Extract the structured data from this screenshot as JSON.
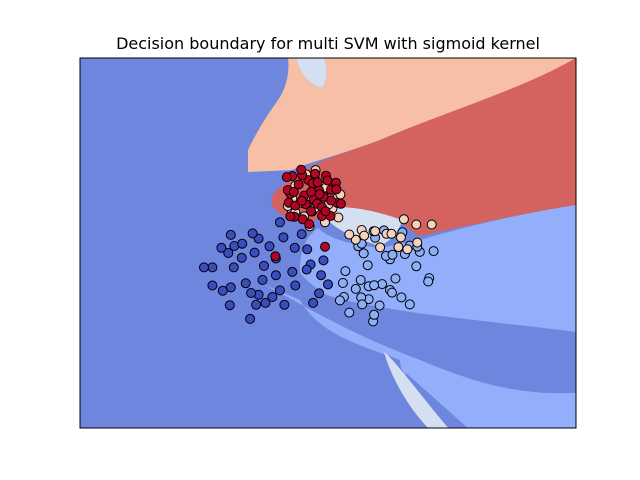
{
  "chart_data": {
    "type": "scatter",
    "title": "Decision boundary for multi SVM with sigmoid kernel",
    "xlabel": "",
    "ylabel": "",
    "xlim": [
      0,
      100
    ],
    "ylim": [
      0,
      100
    ],
    "grid": false,
    "legend": "none",
    "colors": {
      "region_0": "#6e86dd",
      "region_1": "#93aefa",
      "region_2": "#d5dff2",
      "region_3": "#f6bfa6",
      "region_4": "#d4635f",
      "class_0": "#3b4cc0",
      "class_1": "#8caff5",
      "class_2": "#f2d3bf",
      "class_3": "#b40426",
      "edge": "#000000",
      "axes_edge": "#000000"
    },
    "series": [
      {
        "class": 0,
        "points": [
          [
            36.0,
            51.2
          ],
          [
            38.2,
            49.1
          ],
          [
            35.2,
            47.4
          ],
          [
            39.5,
            45.8
          ],
          [
            41.0,
            51.5
          ],
          [
            43.3,
            48.7
          ],
          [
            37.1,
            43.8
          ],
          [
            44.7,
            52.4
          ],
          [
            40.3,
            55.6
          ],
          [
            34.8,
            52.6
          ],
          [
            31.1,
            49.2
          ],
          [
            32.6,
            46.0
          ],
          [
            36.8,
            40.0
          ],
          [
            40.3,
            37.2
          ],
          [
            42.8,
            42.2
          ],
          [
            45.8,
            48.3
          ],
          [
            46.5,
            44.2
          ],
          [
            48.6,
            41.3
          ],
          [
            50.0,
            38.8
          ],
          [
            49.1,
            45.3
          ],
          [
            43.4,
            38.5
          ],
          [
            38.8,
            35.4
          ],
          [
            33.4,
            39.1
          ],
          [
            31.0,
            43.4
          ],
          [
            30.4,
            52.2
          ],
          [
            29.9,
            47.3
          ],
          [
            28.5,
            48.7
          ],
          [
            26.7,
            43.4
          ],
          [
            25.0,
            43.4
          ],
          [
            30.4,
            38.0
          ],
          [
            36.0,
            36.0
          ],
          [
            35.5,
            33.3
          ],
          [
            34.5,
            36.5
          ],
          [
            37.4,
            33.8
          ],
          [
            41.2,
            33.3
          ],
          [
            45.7,
            42.8
          ],
          [
            48.2,
            36.4
          ],
          [
            47.0,
            33.8
          ],
          [
            30.2,
            33.2
          ],
          [
            34.3,
            29.5
          ],
          [
            28.8,
            37.1
          ],
          [
            32.7,
            49.8
          ],
          [
            26.7,
            38.5
          ],
          [
            39.5,
            41.3
          ]
        ]
      },
      {
        "class": 1,
        "points": [
          [
            62.5,
            45.6
          ],
          [
            59.5,
            51.4
          ],
          [
            56.1,
            49.1
          ],
          [
            58.0,
            44.0
          ],
          [
            63.6,
            40.4
          ],
          [
            60.9,
            38.9
          ],
          [
            56.6,
            40.0
          ],
          [
            53.5,
            42.4
          ],
          [
            55.6,
            37.6
          ],
          [
            58.2,
            34.8
          ],
          [
            62.5,
            37.3
          ],
          [
            66.5,
            33.4
          ],
          [
            61.7,
            46.5
          ],
          [
            68.5,
            47.6
          ],
          [
            70.4,
            40.5
          ],
          [
            67.8,
            43.7
          ],
          [
            65.0,
            52.9
          ],
          [
            66.5,
            49.3
          ],
          [
            64.8,
            35.3
          ],
          [
            63.0,
            46.8
          ],
          [
            61.3,
            53.4
          ],
          [
            57.2,
            47.2
          ],
          [
            53.2,
            35.4
          ],
          [
            52.4,
            34.5
          ],
          [
            54.3,
            31.2
          ],
          [
            59.1,
            28.8
          ],
          [
            62.9,
            36.6
          ],
          [
            56.7,
            35.3
          ],
          [
            68.0,
            49.0
          ],
          [
            65.5,
            47.0
          ],
          [
            58.2,
            38.3
          ],
          [
            56.8,
            49.8
          ],
          [
            71.3,
            47.8
          ],
          [
            60.4,
            33.1
          ],
          [
            59.3,
            38.6
          ],
          [
            56.9,
            33.4
          ],
          [
            59.2,
            53.2
          ],
          [
            70.2,
            39.6
          ],
          [
            59.3,
            30.6
          ],
          [
            53.0,
            39.2
          ]
        ]
      },
      {
        "class": 2,
        "points": [
          [
            56.8,
            53.5
          ],
          [
            55.6,
            50.9
          ],
          [
            61.8,
            52.5
          ],
          [
            64.7,
            51.5
          ],
          [
            68.0,
            50.1
          ],
          [
            66.0,
            48.3
          ],
          [
            64.2,
            48.9
          ],
          [
            60.5,
            48.8
          ],
          [
            59.5,
            53.2
          ],
          [
            57.3,
            52.0
          ],
          [
            54.3,
            52.3
          ],
          [
            65.3,
            56.4
          ],
          [
            62.8,
            52.5
          ],
          [
            67.8,
            55.0
          ],
          [
            70.9,
            55.0
          ],
          [
            46.8,
            58.5
          ],
          [
            42.7,
            58.5
          ],
          [
            44.8,
            60.8
          ],
          [
            46.3,
            62.5
          ],
          [
            49.1,
            63.0
          ],
          [
            50.9,
            59.3
          ],
          [
            51.9,
            62.2
          ],
          [
            47.4,
            67.2
          ],
          [
            48.7,
            65.3
          ],
          [
            42.8,
            61.9
          ],
          [
            41.9,
            60.0
          ],
          [
            47.4,
            59.5
          ],
          [
            45.2,
            57.2
          ],
          [
            47.5,
            69.7
          ],
          [
            49.6,
            65.0
          ],
          [
            52.5,
            63.1
          ],
          [
            50.1,
            60.4
          ],
          [
            43.4,
            58.4
          ],
          [
            46.3,
            54.5
          ],
          [
            52.1,
            56.9
          ],
          [
            49.4,
            55.6
          ],
          [
            43.4,
            65.5
          ],
          [
            45.6,
            68.5
          ]
        ]
      },
      {
        "class": 3,
        "points": [
          [
            42.4,
            63.3
          ],
          [
            44.1,
            65.8
          ],
          [
            45.2,
            62.8
          ],
          [
            47.1,
            61.7
          ],
          [
            49.1,
            62.5
          ],
          [
            46.0,
            67.0
          ],
          [
            48.2,
            64.2
          ],
          [
            42.1,
            60.9
          ],
          [
            42.8,
            68.1
          ],
          [
            44.8,
            68.3
          ],
          [
            46.9,
            66.1
          ],
          [
            47.8,
            60.6
          ],
          [
            48.8,
            59.7
          ],
          [
            50.6,
            64.4
          ],
          [
            51.9,
            60.8
          ],
          [
            50.5,
            57.3
          ],
          [
            46.6,
            63.8
          ],
          [
            49.6,
            68.2
          ],
          [
            43.4,
            60.1
          ],
          [
            44.9,
            56.4
          ],
          [
            41.9,
            64.3
          ],
          [
            51.6,
            66.3
          ],
          [
            48.8,
            57.3
          ],
          [
            43.2,
            57.1
          ],
          [
            44.6,
            69.8
          ],
          [
            47.4,
            68.7
          ],
          [
            49.5,
            58.6
          ],
          [
            45.5,
            60.5
          ],
          [
            46.6,
            58.6
          ],
          [
            41.7,
            67.8
          ],
          [
            44.7,
            61.4
          ],
          [
            48.3,
            63.2
          ],
          [
            50.6,
            61.5
          ],
          [
            49.9,
            66.9
          ],
          [
            47.9,
            66.4
          ],
          [
            43.1,
            63.8
          ],
          [
            42.4,
            57.2
          ],
          [
            52.6,
            60.6
          ],
          [
            51.7,
            64.5
          ],
          [
            46.2,
            55.1
          ],
          [
            49.4,
            49.0
          ],
          [
            39.4,
            46.4
          ]
        ]
      }
    ]
  }
}
